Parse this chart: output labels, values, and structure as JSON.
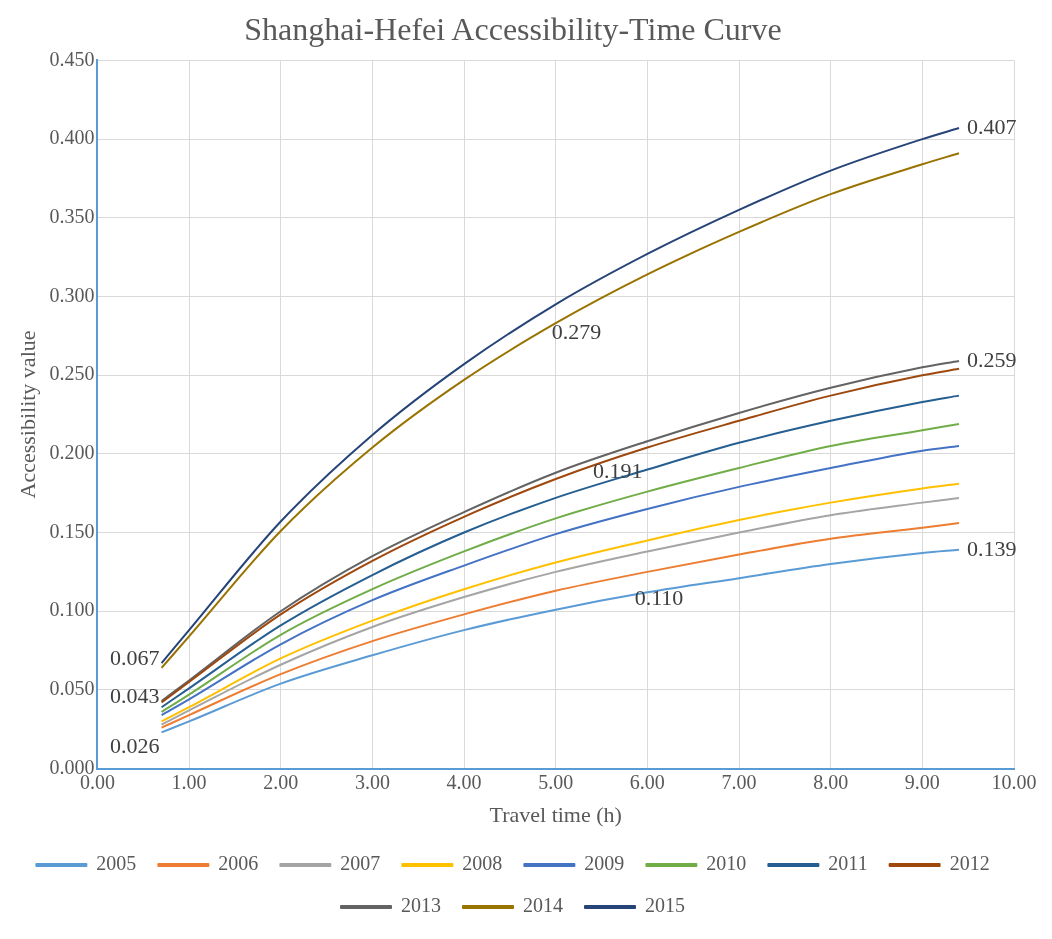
{
  "chart_data": {
    "type": "line",
    "title": "Shanghai-Hefei Accessibility-Time Curve",
    "xlabel": "Travel time (h)",
    "ylabel": "Accessibility value",
    "x": [
      0.7,
      1,
      2,
      3,
      4,
      5,
      6,
      7,
      8,
      9,
      9.4
    ],
    "xlim": [
      0,
      10
    ],
    "xticks": [
      {
        "value": 0,
        "label": "0.00"
      },
      {
        "value": 1,
        "label": "1.00"
      },
      {
        "value": 2,
        "label": "2.00"
      },
      {
        "value": 3,
        "label": "3.00"
      },
      {
        "value": 4,
        "label": "4.00"
      },
      {
        "value": 5,
        "label": "5.00"
      },
      {
        "value": 6,
        "label": "6.00"
      },
      {
        "value": 7,
        "label": "7.00"
      },
      {
        "value": 8,
        "label": "8.00"
      },
      {
        "value": 9,
        "label": "9.00"
      },
      {
        "value": 10,
        "label": "10.00"
      }
    ],
    "ylim": [
      0,
      0.45
    ],
    "yticks": [
      {
        "value": 0,
        "label": "0.000"
      },
      {
        "value": 0.05,
        "label": "0.050"
      },
      {
        "value": 0.1,
        "label": "0.100"
      },
      {
        "value": 0.15,
        "label": "0.150"
      },
      {
        "value": 0.2,
        "label": "0.200"
      },
      {
        "value": 0.25,
        "label": "0.250"
      },
      {
        "value": 0.3,
        "label": "0.300"
      },
      {
        "value": 0.35,
        "label": "0.350"
      },
      {
        "value": 0.4,
        "label": "0.400"
      },
      {
        "value": 0.45,
        "label": "0.450"
      }
    ],
    "grid": true,
    "legend": "bottom",
    "marker": "none",
    "line_style": "solid",
    "series": [
      {
        "name": "2005",
        "color": "#5b9bd5",
        "values": [
          0.023,
          0.03,
          0.054,
          0.072,
          0.088,
          0.101,
          0.112,
          0.121,
          0.13,
          0.137,
          0.139
        ]
      },
      {
        "name": "2006",
        "color": "#ed7d31",
        "values": [
          0.026,
          0.034,
          0.06,
          0.081,
          0.098,
          0.113,
          0.125,
          0.136,
          0.146,
          0.153,
          0.156
        ]
      },
      {
        "name": "2007",
        "color": "#a5a5a5",
        "values": [
          0.028,
          0.037,
          0.066,
          0.09,
          0.109,
          0.125,
          0.138,
          0.15,
          0.161,
          0.169,
          0.172
        ]
      },
      {
        "name": "2008",
        "color": "#ffc000",
        "values": [
          0.03,
          0.039,
          0.07,
          0.094,
          0.114,
          0.131,
          0.145,
          0.158,
          0.169,
          0.178,
          0.181
        ]
      },
      {
        "name": "2009",
        "color": "#4472c4",
        "values": [
          0.034,
          0.044,
          0.079,
          0.107,
          0.129,
          0.149,
          0.165,
          0.179,
          0.191,
          0.202,
          0.205
        ]
      },
      {
        "name": "2010",
        "color": "#70ad47",
        "values": [
          0.036,
          0.047,
          0.085,
          0.114,
          0.138,
          0.159,
          0.176,
          0.191,
          0.205,
          0.215,
          0.219
        ]
      },
      {
        "name": "2011",
        "color": "#255e91",
        "values": [
          0.039,
          0.051,
          0.091,
          0.123,
          0.15,
          0.172,
          0.19,
          0.207,
          0.221,
          0.233,
          0.237
        ]
      },
      {
        "name": "2012",
        "color": "#9e480e",
        "values": [
          0.042,
          0.055,
          0.098,
          0.132,
          0.16,
          0.184,
          0.204,
          0.221,
          0.237,
          0.25,
          0.254
        ]
      },
      {
        "name": "2013",
        "color": "#636363",
        "values": [
          0.043,
          0.056,
          0.1,
          0.135,
          0.163,
          0.188,
          0.208,
          0.226,
          0.242,
          0.255,
          0.259
        ]
      },
      {
        "name": "2014",
        "color": "#997300",
        "values": [
          0.064,
          0.084,
          0.151,
          0.204,
          0.247,
          0.283,
          0.314,
          0.341,
          0.365,
          0.384,
          0.391
        ]
      },
      {
        "name": "2015",
        "color": "#264478",
        "values": [
          0.067,
          0.088,
          0.157,
          0.212,
          0.257,
          0.295,
          0.327,
          0.355,
          0.38,
          0.4,
          0.407
        ]
      }
    ],
    "annotations": [
      {
        "text": "0.067",
        "x": 0.7,
        "y": 0.067
      },
      {
        "text": "0.043",
        "x": 0.7,
        "y": 0.043
      },
      {
        "text": "0.026",
        "x": 0.7,
        "y": 0.026
      },
      {
        "text": "0.279",
        "x": 4.9,
        "y": 0.279
      },
      {
        "text": "0.191",
        "x": 5.35,
        "y": 0.191
      },
      {
        "text": "0.110",
        "x": 5.8,
        "y": 0.11
      },
      {
        "text": "0.407",
        "x": 9.4,
        "y": 0.407
      },
      {
        "text": "0.259",
        "x": 9.4,
        "y": 0.259
      },
      {
        "text": "0.139",
        "x": 9.4,
        "y": 0.139
      }
    ]
  }
}
